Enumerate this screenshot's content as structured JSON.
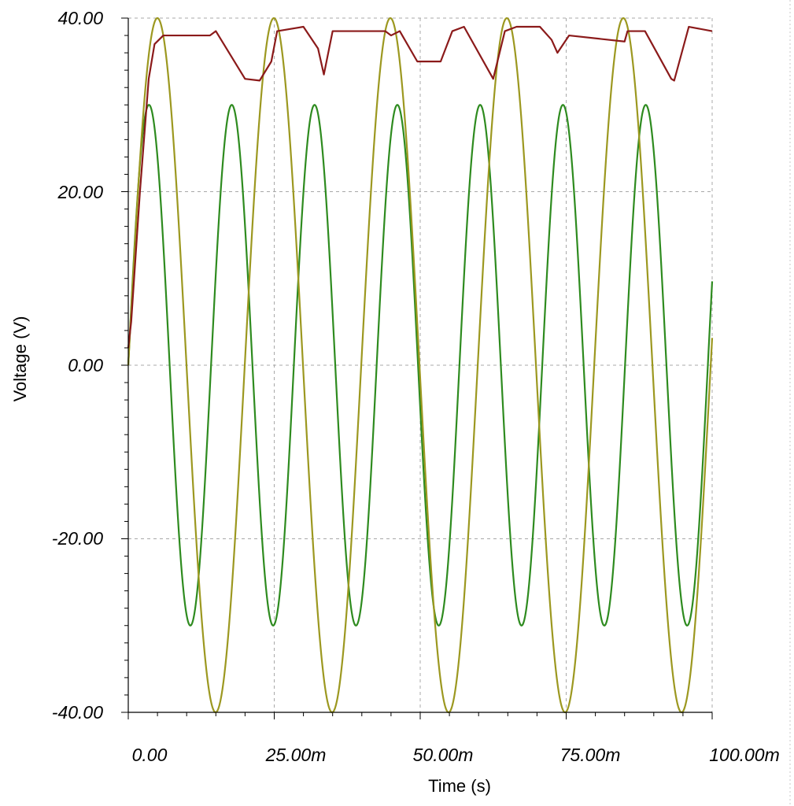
{
  "chart_data": {
    "type": "line",
    "title": "",
    "xlabel": "Time (s)",
    "ylabel": "Voltage (V)",
    "xlim": [
      0,
      0.1
    ],
    "ylim": [
      -40,
      40
    ],
    "grid": true,
    "legend": "none",
    "x_tick_labels": [
      "0.00",
      "25.00m",
      "50.00m",
      "75.00m",
      "100.00m"
    ],
    "y_tick_labels": [
      "40.00",
      "20.00",
      "0.00",
      "-20.00",
      "-40.00"
    ],
    "series": [
      {
        "color": "#2e8b1f",
        "kind": "sine",
        "amplitude": 30,
        "period": 0.01418,
        "phase_start_time": 0
      },
      {
        "color": "#9c9820",
        "kind": "sine",
        "amplitude": 40,
        "period": 0.01995,
        "phase_start_time": 0
      },
      {
        "color": "#8b1a1a",
        "kind": "points",
        "x": [
          0,
          0.0005,
          0.002,
          0.0035,
          0.0045,
          0.006,
          0.01,
          0.014,
          0.015,
          0.02,
          0.0225,
          0.0245,
          0.0255,
          0.03,
          0.0325,
          0.0335,
          0.035,
          0.044,
          0.045,
          0.0465,
          0.0495,
          0.0525,
          0.0535,
          0.0555,
          0.0575,
          0.0625,
          0.0645,
          0.0665,
          0.0705,
          0.0725,
          0.0735,
          0.0755,
          0.085,
          0.0855,
          0.0885,
          0.093,
          0.0935,
          0.096,
          0.1
        ],
        "y": [
          2,
          5,
          20,
          33,
          37,
          38,
          38,
          38,
          38.5,
          33,
          32.8,
          35,
          38.5,
          39,
          36.5,
          33.5,
          38.5,
          38.5,
          38,
          38.5,
          35,
          35,
          35,
          38.5,
          39,
          33,
          38.5,
          39,
          39,
          37.5,
          36,
          38,
          37.3,
          38.5,
          38.5,
          33,
          32.8,
          39,
          38.5
        ]
      }
    ]
  }
}
